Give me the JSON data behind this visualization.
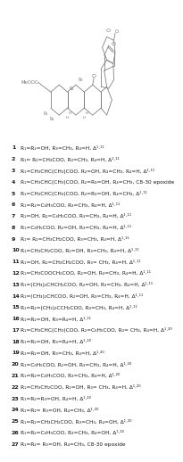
{
  "compounds": [
    {
      "num": "1",
      "text": "R₁=R₂=OH, R₃=CH₃, R₄=H, Δ¹·¹¹"
    },
    {
      "num": "2",
      "text": "R₁= R₂=CH₃COO, R₃=CH₃, R₄=H, Δ¹·¹¹"
    },
    {
      "num": "3",
      "text": "R₁=CH₃CHC(CH₃)COO, R₂=OH, R₃=CH₃, R₄=H, Δ¹·¹¹"
    },
    {
      "num": "4",
      "text": "R₁=CH₃CHC(CH₃)COO, R₂=R₃=OH, R₄=CH₃, C8-30 epoxide"
    },
    {
      "num": "5",
      "text": "R₁=CH₃CHC(CH₃)COO, R₂=R₃=OH, R₄=CH₃, Δ¹·¹¹"
    },
    {
      "num": "6",
      "text": "R₁=R₂=C₆H₅COO, R₃=CH₃, R₄=H, Δ¹·¹¹"
    },
    {
      "num": "7",
      "text": "R₁=OH, R₂=C₆H₅COO, R₃=CH₃, R₄=H, Δ¹·¹¹"
    },
    {
      "num": "8",
      "text": "R₁=C₆H₅COO, R₂=OH, R₃=CH₃, R₄=H, Δ¹·¹¹"
    },
    {
      "num": "9",
      "text": "R₁= R₂=CH₃CH₂COO, R₃=CH₃, R₄=H, Δ¹·¹¹"
    },
    {
      "num": "10",
      "text": "R₁=CH₃CH₂COO, R₂=OH, R₃=CH₃, R₄=H, Δ¹·¹¹"
    },
    {
      "num": "11",
      "text": "R₁=OH, R₂=CH₃CH₂COO, R₃= CH₃, R₄=H, Δ¹·¹¹"
    },
    {
      "num": "12",
      "text": "R₁=CH₃COOCH₂COO, R₂=OH, R₃=CH₃, R₄=H, Δ¹·¹¹"
    },
    {
      "num": "13",
      "text": "R₁=(CH₃)₂CHCH₂COO, R₂=OH, R₃=CH₃, R₄=H, Δ¹·¹¹"
    },
    {
      "num": "14",
      "text": "R₁=(CH₃)₂CHCOO, R₂=OH, R₃=CH₃, R₄=H, Δ¹·¹¹"
    },
    {
      "num": "15",
      "text": "R₁=R₂=(CH₃)₂CCH₂COO, R₃=CH₃, R₄=H, Δ¹·¹¹"
    },
    {
      "num": "16",
      "text": "R₁=R₂=OH, R₃=R₄=H, Δ¹·¹¹"
    },
    {
      "num": "17",
      "text": "R₁=CH₃CHC(CH₃)COO, R₂=C₆H₅COO, R₃= CH₃, R₄=H, Δ¹·²⁰"
    },
    {
      "num": "18",
      "text": "R₁=R₂=OH, R₃=R₄=H, Δ¹·²⁰"
    },
    {
      "num": "19",
      "text": "R₁=R₂=OH, R₃=CH₃, R₄=H, Δ¹·²⁰"
    },
    {
      "num": "20",
      "text": "R₁=C₆H₅COO, R₂=OH, R₃=CH₃, R₄=H, Δ¹·²⁰"
    },
    {
      "num": "21",
      "text": "R₁=R₂=C₆H₅COO, R₃=CH₃, R₄=H, Δ¹·²⁰"
    },
    {
      "num": "22",
      "text": "R₁=CH₃CH₂COO, R₂=OH, R₃= CH₃, R₄=H, Δ¹·²⁰"
    },
    {
      "num": "23",
      "text": "R₁=R₂=R₃=OH, R₄=H, Δ¹·²⁰"
    },
    {
      "num": "24",
      "text": "R₁=R₂= R₃=OH, R₄=CH₃, Δ¹·²⁰"
    },
    {
      "num": "25",
      "text": "R₁=R₂=CH₃CH₂COO, R₃=CH₃, R₄=OH, Δ¹·²⁰"
    },
    {
      "num": "26",
      "text": "R₁=R₂=C₆H₅COO, R₃=CH₃, R₄=OH, Δ¹·²⁰"
    },
    {
      "num": "27",
      "text": "R₁=R₂= R₃=OH, R₄=CH₃, C8-30 epoxide"
    }
  ],
  "bg_color": "#ffffff",
  "text_color": "#1a1a1a",
  "font_size": 4.2,
  "num_font_size": 4.5,
  "struct_color": "#777777",
  "struct_lw": 0.55
}
